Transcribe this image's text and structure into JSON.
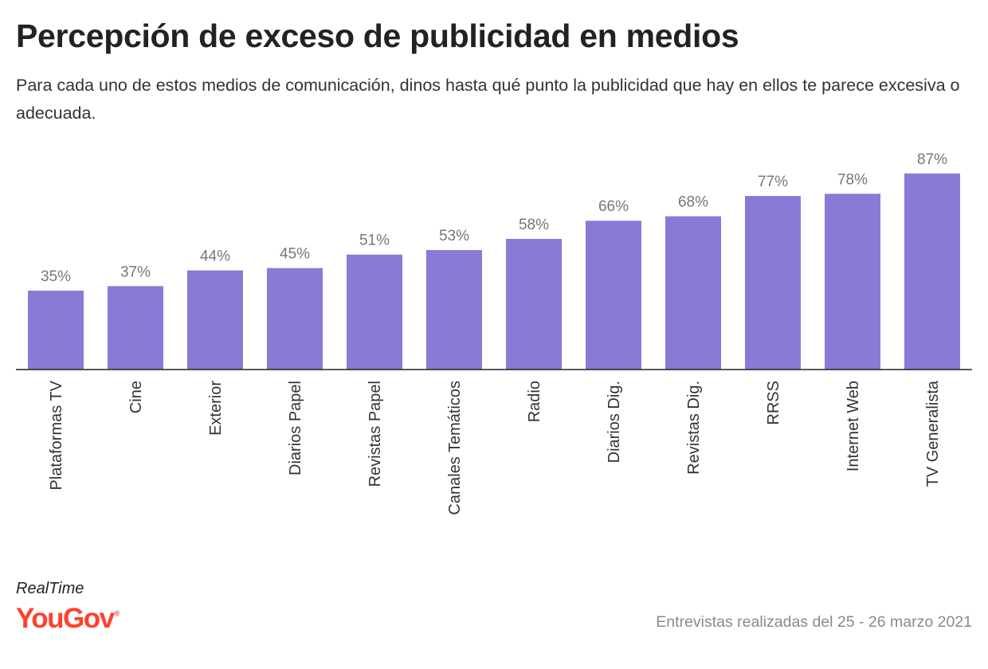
{
  "title": "Percepción de exceso de publicidad en medios",
  "subtitle": "Para cada uno de estos medios de comunicación, dinos hasta qué punto la publicidad que hay en ellos te parece excesiva o adecuada.",
  "brand": {
    "realtime": "RealTime",
    "logo": "YouGov",
    "logo_mark": "®"
  },
  "footnote": "Entrevistas realizadas del 25 - 26 marzo 2021",
  "colors": {
    "bar": "#877bd5",
    "value_label": "#777777",
    "category_label": "#333333",
    "axis": "#222222",
    "brand": "#ff412c"
  },
  "chart_data": {
    "type": "bar",
    "title": "Percepción de exceso de publicidad en medios",
    "subtitle": "Para cada uno de estos medios de comunicación, dinos hasta qué punto la publicidad que hay en ellos te parece excesiva o adecuada.",
    "xlabel": "",
    "ylabel": "",
    "ylim": [
      0,
      100
    ],
    "grid": false,
    "legend": "none",
    "value_suffix": "%",
    "category_orientation": "vertical",
    "categories": [
      "Plataformas TV",
      "Cine",
      "Exterior",
      "Diarios Papel",
      "Revistas Papel",
      "Canales Temáticos",
      "Radio",
      "Diarios Dig.",
      "Revistas Dig.",
      "RRSS",
      "Internet Web",
      "TV Generalista"
    ],
    "values": [
      35,
      37,
      44,
      45,
      51,
      53,
      58,
      66,
      68,
      77,
      78,
      87
    ],
    "labels": [
      "35%",
      "37%",
      "44%",
      "45%",
      "51%",
      "53%",
      "58%",
      "66%",
      "68%",
      "77%",
      "78%",
      "87%"
    ]
  }
}
